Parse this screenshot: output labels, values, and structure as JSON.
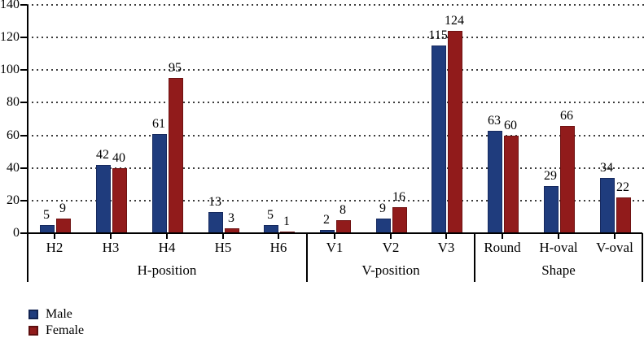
{
  "chart_data": {
    "type": "bar",
    "title": "",
    "xlabel": "",
    "ylabel": "",
    "ylim": [
      0,
      140
    ],
    "ytick_step": 20,
    "ytick_labels": [
      "0",
      "20",
      "40",
      "60",
      "80",
      "100",
      "120",
      "140"
    ],
    "grid": "horizontal-dotted",
    "value_labels_shown": true,
    "legend_position": "bottom-left",
    "groups": [
      {
        "label": "H-position",
        "categories": [
          "H2",
          "H3",
          "H4",
          "H5",
          "H6"
        ]
      },
      {
        "label": "V-position",
        "categories": [
          "V1",
          "V2",
          "V3"
        ]
      },
      {
        "label": "Shape",
        "categories": [
          "Round",
          "H-oval",
          "V-oval"
        ]
      }
    ],
    "categories": [
      "H2",
      "H3",
      "H4",
      "H5",
      "H6",
      "V1",
      "V2",
      "V3",
      "Round",
      "H-oval",
      "V-oval"
    ],
    "series": [
      {
        "name": "Male",
        "color": "#1f3c7d",
        "values": [
          5,
          42,
          61,
          13,
          5,
          2,
          9,
          115,
          63,
          29,
          34
        ]
      },
      {
        "name": "Female",
        "color": "#911b1b",
        "values": [
          9,
          40,
          95,
          3,
          1,
          8,
          16,
          124,
          60,
          66,
          22
        ]
      }
    ]
  },
  "legend": {
    "items": [
      {
        "label": "Male",
        "color": "#1f3c7d"
      },
      {
        "label": "Female",
        "color": "#911b1b"
      }
    ]
  }
}
